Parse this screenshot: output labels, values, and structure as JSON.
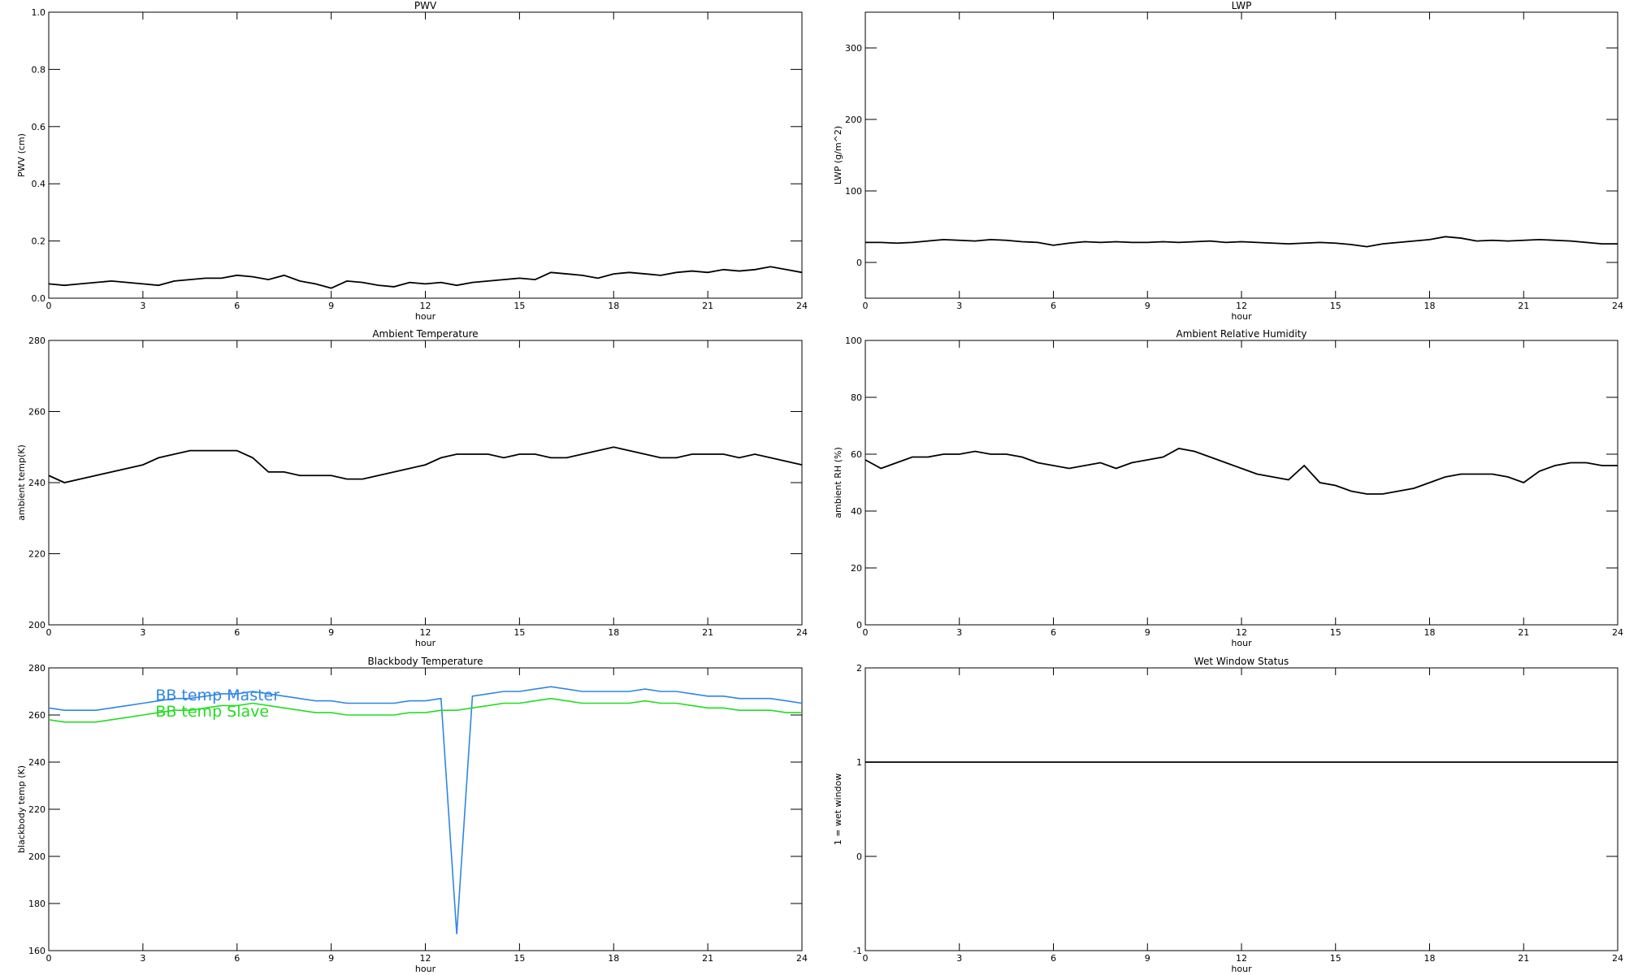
{
  "chart_data": [
    {
      "type": "line",
      "title": "PWV",
      "xlabel": "hour",
      "ylabel": "PWV (cm)",
      "xlim": [
        0,
        24
      ],
      "xticks": [
        0,
        3,
        6,
        9,
        12,
        15,
        18,
        21,
        24
      ],
      "ylim": [
        0,
        1
      ],
      "yticks": [
        {
          "value": 0,
          "label": "0.0"
        },
        0.2,
        0.4,
        0.6,
        0.8,
        {
          "value": 1,
          "label": "1.0"
        }
      ],
      "x": [
        0,
        0.5,
        1,
        1.5,
        2,
        2.5,
        3,
        3.5,
        4,
        4.5,
        5,
        5.5,
        6,
        6.5,
        7,
        7.5,
        8,
        8.5,
        9,
        9.5,
        10,
        10.5,
        11,
        11.5,
        12,
        12.5,
        13,
        13.5,
        14,
        14.5,
        15,
        15.5,
        16,
        16.5,
        17,
        17.5,
        18,
        18.5,
        19,
        19.5,
        20,
        20.5,
        21,
        21.5,
        22,
        22.5,
        23,
        23.5,
        24
      ],
      "series": [
        {
          "color": "#000000",
          "values": [
            0.05,
            0.045,
            0.05,
            0.055,
            0.06,
            0.055,
            0.05,
            0.045,
            0.06,
            0.065,
            0.07,
            0.07,
            0.08,
            0.075,
            0.065,
            0.08,
            0.06,
            0.05,
            0.035,
            0.06,
            0.055,
            0.045,
            0.04,
            0.055,
            0.05,
            0.055,
            0.045,
            0.055,
            0.06,
            0.065,
            0.07,
            0.065,
            0.09,
            0.085,
            0.08,
            0.07,
            0.085,
            0.09,
            0.085,
            0.08,
            0.09,
            0.095,
            0.09,
            0.1,
            0.095,
            0.1,
            0.11,
            0.1,
            0.09
          ]
        }
      ]
    },
    {
      "type": "line",
      "title": "LWP",
      "xlabel": "hour",
      "ylabel": "LWP (g/m^2)",
      "xlim": [
        0,
        24
      ],
      "xticks": [
        0,
        3,
        6,
        9,
        12,
        15,
        18,
        21,
        24
      ],
      "ylim": [
        -50,
        350
      ],
      "yticks": [
        0,
        100,
        200,
        300
      ],
      "x": [
        0,
        0.5,
        1,
        1.5,
        2,
        2.5,
        3,
        3.5,
        4,
        4.5,
        5,
        5.5,
        6,
        6.5,
        7,
        7.5,
        8,
        8.5,
        9,
        9.5,
        10,
        10.5,
        11,
        11.5,
        12,
        12.5,
        13,
        13.5,
        14,
        14.5,
        15,
        15.5,
        16,
        16.5,
        17,
        17.5,
        18,
        18.5,
        19,
        19.5,
        20,
        20.5,
        21,
        21.5,
        22,
        22.5,
        23,
        23.5,
        24
      ],
      "series": [
        {
          "color": "#000000",
          "values": [
            28,
            28,
            27,
            28,
            30,
            32,
            31,
            30,
            32,
            31,
            29,
            28,
            24,
            27,
            29,
            28,
            29,
            28,
            28,
            29,
            28,
            29,
            30,
            28,
            29,
            28,
            27,
            26,
            27,
            28,
            27,
            25,
            22,
            26,
            28,
            30,
            32,
            36,
            34,
            30,
            31,
            30,
            31,
            32,
            31,
            30,
            28,
            26,
            26
          ]
        }
      ]
    },
    {
      "type": "line",
      "title": "Ambient Temperature",
      "xlabel": "hour",
      "ylabel": "ambient temp(K)",
      "xlim": [
        0,
        24
      ],
      "xticks": [
        0,
        3,
        6,
        9,
        12,
        15,
        18,
        21,
        24
      ],
      "ylim": [
        200,
        280
      ],
      "yticks": [
        200,
        220,
        240,
        260,
        280
      ],
      "x": [
        0,
        0.5,
        1,
        1.5,
        2,
        2.5,
        3,
        3.5,
        4,
        4.5,
        5,
        5.5,
        6,
        6.5,
        7,
        7.5,
        8,
        8.5,
        9,
        9.5,
        10,
        10.5,
        11,
        11.5,
        12,
        12.5,
        13,
        13.5,
        14,
        14.5,
        15,
        15.5,
        16,
        16.5,
        17,
        17.5,
        18,
        18.5,
        19,
        19.5,
        20,
        20.5,
        21,
        21.5,
        22,
        22.5,
        23,
        23.5,
        24
      ],
      "series": [
        {
          "color": "#000000",
          "values": [
            242,
            240,
            241,
            242,
            243,
            244,
            245,
            247,
            248,
            249,
            249,
            249,
            249,
            247,
            243,
            243,
            242,
            242,
            242,
            241,
            241,
            242,
            243,
            244,
            245,
            247,
            248,
            248,
            248,
            247,
            248,
            248,
            247,
            247,
            248,
            249,
            250,
            249,
            248,
            247,
            247,
            248,
            248,
            248,
            247,
            248,
            247,
            246,
            245
          ]
        }
      ]
    },
    {
      "type": "line",
      "title": "Ambient Relative Humidity",
      "xlabel": "hour",
      "ylabel": "ambient RH (%)",
      "xlim": [
        0,
        24
      ],
      "xticks": [
        0,
        3,
        6,
        9,
        12,
        15,
        18,
        21,
        24
      ],
      "ylim": [
        0,
        100
      ],
      "yticks": [
        0,
        20,
        40,
        60,
        80,
        100
      ],
      "x": [
        0,
        0.5,
        1,
        1.5,
        2,
        2.5,
        3,
        3.5,
        4,
        4.5,
        5,
        5.5,
        6,
        6.5,
        7,
        7.5,
        8,
        8.5,
        9,
        9.5,
        10,
        10.5,
        11,
        11.5,
        12,
        12.5,
        13,
        13.5,
        14,
        14.5,
        15,
        15.5,
        16,
        16.5,
        17,
        17.5,
        18,
        18.5,
        19,
        19.5,
        20,
        20.5,
        21,
        21.5,
        22,
        22.5,
        23,
        23.5,
        24
      ],
      "series": [
        {
          "color": "#000000",
          "values": [
            58,
            55,
            57,
            59,
            59,
            60,
            60,
            61,
            60,
            60,
            59,
            57,
            56,
            55,
            56,
            57,
            55,
            57,
            58,
            59,
            62,
            61,
            59,
            57,
            55,
            53,
            52,
            51,
            56,
            50,
            49,
            47,
            46,
            46,
            47,
            48,
            50,
            52,
            53,
            53,
            53,
            52,
            50,
            54,
            56,
            57,
            57,
            56,
            56
          ]
        }
      ]
    },
    {
      "type": "line",
      "title": "Blackbody Temperature",
      "xlabel": "hour",
      "ylabel": "blackbody temp (K)",
      "xlim": [
        0,
        24
      ],
      "xticks": [
        0,
        3,
        6,
        9,
        12,
        15,
        18,
        21,
        24
      ],
      "ylim": [
        160,
        280
      ],
      "yticks": [
        160,
        180,
        200,
        220,
        240,
        260,
        280
      ],
      "x": [
        0,
        0.5,
        1,
        1.5,
        2,
        2.5,
        3,
        3.5,
        4,
        4.5,
        5,
        5.5,
        6,
        6.5,
        7,
        7.5,
        8,
        8.5,
        9,
        9.5,
        10,
        10.5,
        11,
        11.5,
        12,
        12.5,
        13,
        13.5,
        14,
        14.5,
        15,
        15.5,
        16,
        16.5,
        17,
        17.5,
        18,
        18.5,
        19,
        19.5,
        20,
        20.5,
        21,
        21.5,
        22,
        22.5,
        23,
        23.5,
        24
      ],
      "series": [
        {
          "name": "BB temp Master",
          "color": "#2f86e6",
          "values": [
            263,
            262,
            262,
            262,
            263,
            264,
            265,
            266,
            267,
            267,
            268,
            269,
            269,
            270,
            269,
            268,
            267,
            266,
            266,
            265,
            265,
            265,
            265,
            266,
            266,
            267,
            167,
            268,
            269,
            270,
            270,
            271,
            272,
            271,
            270,
            270,
            270,
            270,
            271,
            270,
            270,
            269,
            268,
            268,
            267,
            267,
            267,
            266,
            265
          ]
        },
        {
          "name": "BB temp Slave",
          "color": "#22dd22",
          "values": [
            258,
            257,
            257,
            257,
            258,
            259,
            260,
            261,
            262,
            262,
            263,
            264,
            264,
            265,
            264,
            263,
            262,
            261,
            261,
            260,
            260,
            260,
            260,
            261,
            261,
            262,
            262,
            263,
            264,
            265,
            265,
            266,
            267,
            266,
            265,
            265,
            265,
            265,
            266,
            265,
            265,
            264,
            263,
            263,
            262,
            262,
            262,
            261,
            261
          ]
        }
      ]
    },
    {
      "type": "line",
      "title": "Wet Window Status",
      "xlabel": "hour",
      "ylabel": "1 = wet window",
      "xlim": [
        0,
        24
      ],
      "xticks": [
        0,
        3,
        6,
        9,
        12,
        15,
        18,
        21,
        24
      ],
      "ylim": [
        -1,
        2
      ],
      "yticks": [
        -1,
        0,
        1,
        2
      ],
      "x": [
        0,
        24
      ],
      "series": [
        {
          "color": "#000000",
          "values": [
            1,
            1
          ]
        }
      ]
    }
  ]
}
